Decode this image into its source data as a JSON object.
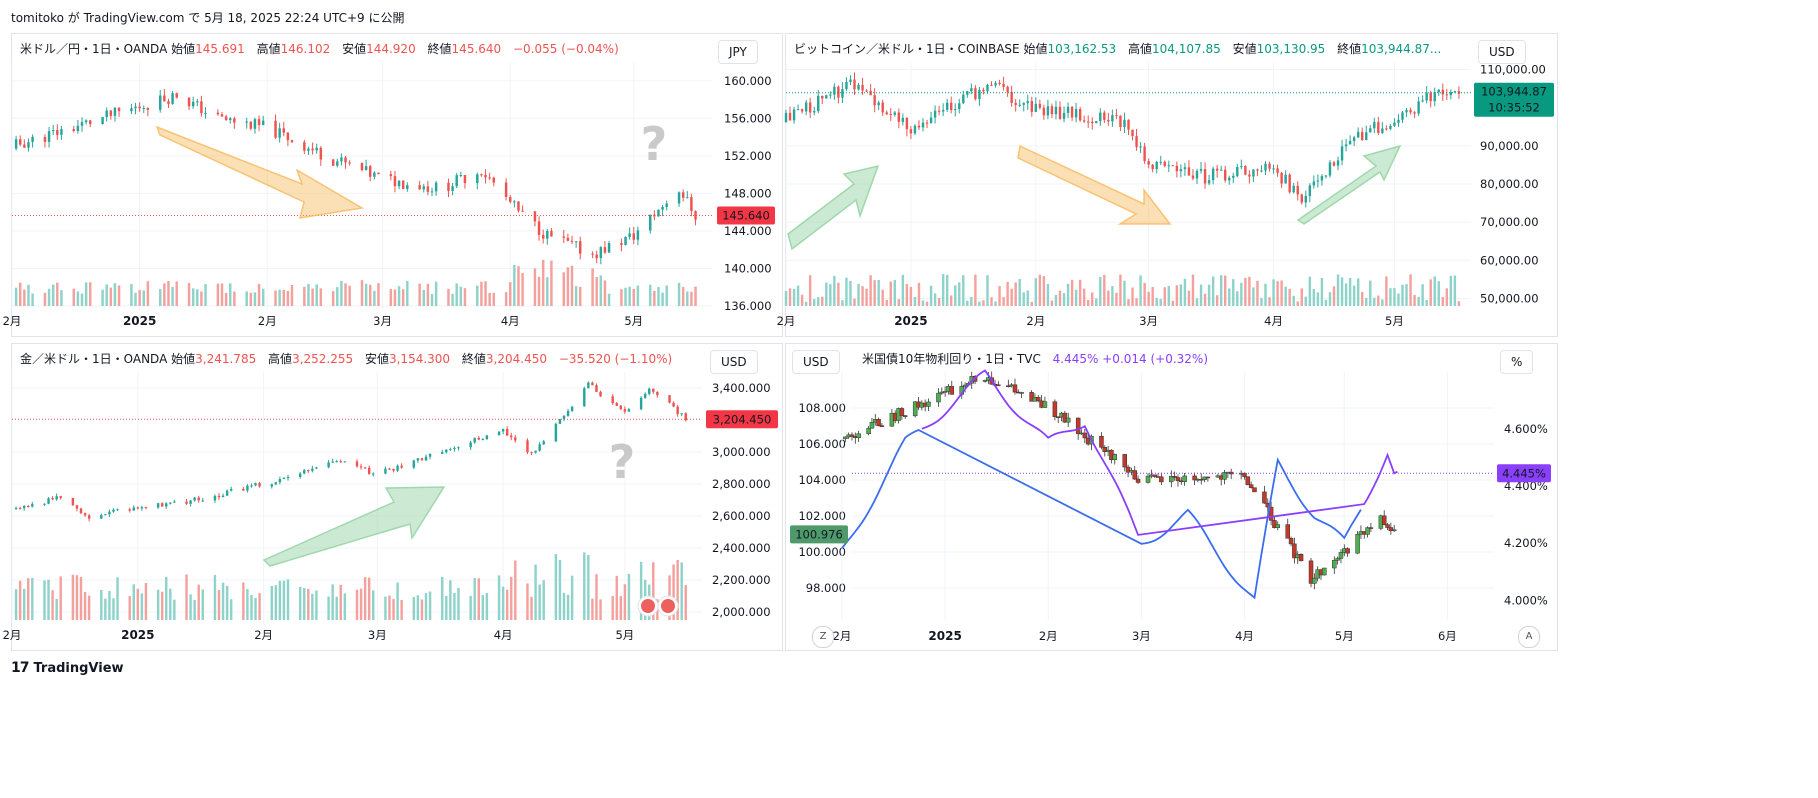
{
  "header": {
    "published": "tomitoko が TradingView.com で 5月 18, 2025 22:24 UTC+9 に公開"
  },
  "footer": {
    "logo_text": "TradingView"
  },
  "colors": {
    "up": "#26a69a",
    "down": "#ef5350",
    "vol_up": "#8dd3ca",
    "vol_down": "#f4a19e",
    "grid": "#f0f3fa",
    "arrow_orange": "#f7b85a",
    "arrow_green": "#8fd19e",
    "line_purple": "#8a3ffc",
    "line_blue": "#3b6df0"
  },
  "panels": [
    {
      "id": "usdjpy",
      "legend": {
        "name": "米ドル／円・1日・OANDA",
        "o_label": "始値",
        "o": "145.691",
        "h_label": "高値",
        "h": "146.102",
        "l_label": "安値",
        "l": "144.920",
        "c_label": "終値",
        "c": "145.640",
        "chg": "−0.055 (−0.04%)"
      },
      "currency": "JPY",
      "last_price": "145.640",
      "y_ticks": [
        "160.000",
        "156.000",
        "152.000",
        "148.000",
        "144.000",
        "140.000",
        "136.000"
      ],
      "x_ticks": [
        "2月",
        "2025",
        "2月",
        "3月",
        "4月",
        "5月"
      ],
      "question_mark": "?"
    },
    {
      "id": "btcusd",
      "legend": {
        "name": "ビットコイン／米ドル・1日・COINBASE",
        "o_label": "始値",
        "o": "103,162.53",
        "h_label": "高値",
        "h": "104,107.85",
        "l_label": "安値",
        "l": "103,130.95",
        "c_label": "終値",
        "c": "103,944.87..."
      },
      "currency": "USD",
      "last_price": "103,944.87",
      "countdown": "10:35:52",
      "y_ticks": [
        "110,000.00",
        "90,000.00",
        "80,000.00",
        "70,000.00",
        "60,000.00",
        "50,000.00"
      ],
      "x_ticks": [
        "2月",
        "2025",
        "2月",
        "3月",
        "4月",
        "5月"
      ]
    },
    {
      "id": "xauusd",
      "legend": {
        "name": "金／米ドル・1日・OANDA",
        "o_label": "始値",
        "o": "3,241.785",
        "h_label": "高値",
        "h": "3,252.255",
        "l_label": "安値",
        "l": "3,154.300",
        "c_label": "終値",
        "c": "3,204.450",
        "chg": "−35.520 (−1.10%)"
      },
      "currency": "USD",
      "last_price": "3,204.450",
      "y_ticks": [
        "3,400.000",
        "3,000.000",
        "2,800.000",
        "2,600.000",
        "2,400.000",
        "2,200.000",
        "2,000.000"
      ],
      "x_ticks": [
        "2月",
        "2025",
        "2月",
        "3月",
        "4月",
        "5月"
      ],
      "question_mark": "?"
    },
    {
      "id": "us10y",
      "legend": {
        "name": "米国債10年物利回り・1日・TVC",
        "value": "4.445%",
        "chg": "+0.014 (+0.32%)"
      },
      "left_currency": "USD",
      "right_unit": "%",
      "left_last": "100.976",
      "right_last": "4.445%",
      "left_ticks": [
        "108.000",
        "106.000",
        "104.000",
        "102.000",
        "100.000",
        "98.000"
      ],
      "right_ticks": [
        "4.600%",
        "4.400%",
        "4.200%",
        "4.000%"
      ],
      "x_ticks": [
        "2月",
        "2025",
        "2月",
        "3月",
        "4月",
        "5月",
        "6月"
      ],
      "btn_left": "Z",
      "btn_right": "A"
    }
  ],
  "chart_data": [
    {
      "type": "line",
      "title": "米ドル／円・1日・OANDA",
      "unit": "JPY",
      "approx_close_path": [
        [
          "2024-12",
          153.0
        ],
        [
          "2025-01-10",
          158.5
        ],
        [
          "2025-01-20",
          156.0
        ],
        [
          "2025-02-01",
          155.0
        ],
        [
          "2025-02-15",
          152.0
        ],
        [
          "2025-03-01",
          149.5
        ],
        [
          "2025-03-15",
          148.5
        ],
        [
          "2025-03-25",
          150.5
        ],
        [
          "2025-04-03",
          146.0
        ],
        [
          "2025-04-10",
          143.5
        ],
        [
          "2025-04-21",
          141.5
        ],
        [
          "2025-05-01",
          143.5
        ],
        [
          "2025-05-12",
          148.5
        ],
        [
          "2025-05-16",
          145.64
        ]
      ],
      "ylim": [
        136,
        162
      ]
    },
    {
      "type": "line",
      "title": "ビットコイン／米ドル・1日・COINBASE",
      "unit": "USD",
      "approx_close_path": [
        [
          "2024-12",
          97000
        ],
        [
          "2024-12-17",
          106000
        ],
        [
          "2025-01-01",
          94000
        ],
        [
          "2025-01-20",
          106000
        ],
        [
          "2025-02-01",
          100000
        ],
        [
          "2025-02-24",
          96000
        ],
        [
          "2025-03-01",
          85000
        ],
        [
          "2025-03-15",
          82000
        ],
        [
          "2025-04-01",
          84000
        ],
        [
          "2025-04-08",
          76000
        ],
        [
          "2025-04-22",
          93000
        ],
        [
          "2025-05-01",
          96000
        ],
        [
          "2025-05-10",
          103500
        ],
        [
          "2025-05-18",
          103944.87
        ]
      ],
      "ylim": [
        48000,
        112000
      ]
    },
    {
      "type": "line",
      "title": "金／米ドル・1日・OANDA",
      "unit": "USD",
      "approx_close_path": [
        [
          "2024-12",
          2640
        ],
        [
          "2024-12-12",
          2710
        ],
        [
          "2024-12-20",
          2600
        ],
        [
          "2025-01-15",
          2700
        ],
        [
          "2025-02-01",
          2800
        ],
        [
          "2025-02-20",
          2940
        ],
        [
          "2025-03-01",
          2860
        ],
        [
          "2025-03-15",
          2990
        ],
        [
          "2025-04-01",
          3140
        ],
        [
          "2025-04-08",
          2990
        ],
        [
          "2025-04-22",
          3420
        ],
        [
          "2025-05-01",
          3240
        ],
        [
          "2025-05-07",
          3400
        ],
        [
          "2025-05-16",
          3204.45
        ]
      ],
      "ylim": [
        1950,
        3500
      ]
    },
    {
      "type": "line",
      "title": "米国債10年物利回り・1日・TVC",
      "series": [
        {
          "name": "米国債10年物利回り",
          "unit": "%",
          "approx_path": [
            [
              "2024-12",
              4.17
            ],
            [
              "2024-12-20",
              4.55
            ],
            [
              "2025-01-13",
              4.79
            ],
            [
              "2025-02-01",
              4.55
            ],
            [
              "2025-02-12",
              4.63
            ],
            [
              "2025-03-01",
              4.2
            ],
            [
              "2025-03-15",
              4.3
            ],
            [
              "2025-04-04",
              4.0
            ],
            [
              "2025-04-11",
              4.48
            ],
            [
              "2025-04-22",
              4.3
            ],
            [
              "2025-05-01",
              4.2
            ],
            [
              "2025-05-14",
              4.52
            ],
            [
              "2025-05-16",
              4.445
            ]
          ]
        },
        {
          "unit": "USD",
          "approx_path": [
            [
              "2024-12",
              106.3
            ],
            [
              "2025-01-13",
              109.8
            ],
            [
              "2025-02-01",
              108.0
            ],
            [
              "2025-03-01",
              104.0
            ],
            [
              "2025-04-01",
              104.2
            ],
            [
              "2025-04-21",
              98.5
            ],
            [
              "2025-05-12",
              101.8
            ],
            [
              "2025-05-16",
              100.976
            ]
          ]
        }
      ],
      "ylim_left": [
        97,
        110
      ],
      "ylim_right": [
        3.98,
        4.8
      ]
    }
  ]
}
